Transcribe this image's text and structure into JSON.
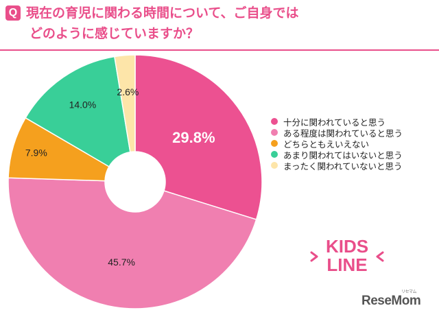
{
  "header": {
    "badge": "Q",
    "question_line1": "現在の育児に関わる時間について、ご自身では",
    "question_line2": "どのように感じていますか？"
  },
  "chart_data": {
    "type": "pie",
    "categories": [
      "十分に関われていると思う",
      "ある程度は関われていると思う",
      "どちらともえいえない",
      "あまり関われてはいないと思う",
      "まったく関われていないと思う"
    ],
    "values": [
      29.8,
      45.7,
      7.9,
      14.0,
      2.6
    ],
    "value_labels": [
      "29.8%",
      "45.7%",
      "7.9%",
      "14.0%",
      "2.6%"
    ],
    "colors": [
      "#ec5191",
      "#f07fb0",
      "#f5a01e",
      "#39cf98",
      "#fde5a9"
    ],
    "legend_position": "right",
    "donut": true
  },
  "logos": {
    "kids_line1": "KIDS",
    "kids_line2": "LINE",
    "resemom": "ReseMom",
    "resemom_ruby": "リセマム"
  }
}
